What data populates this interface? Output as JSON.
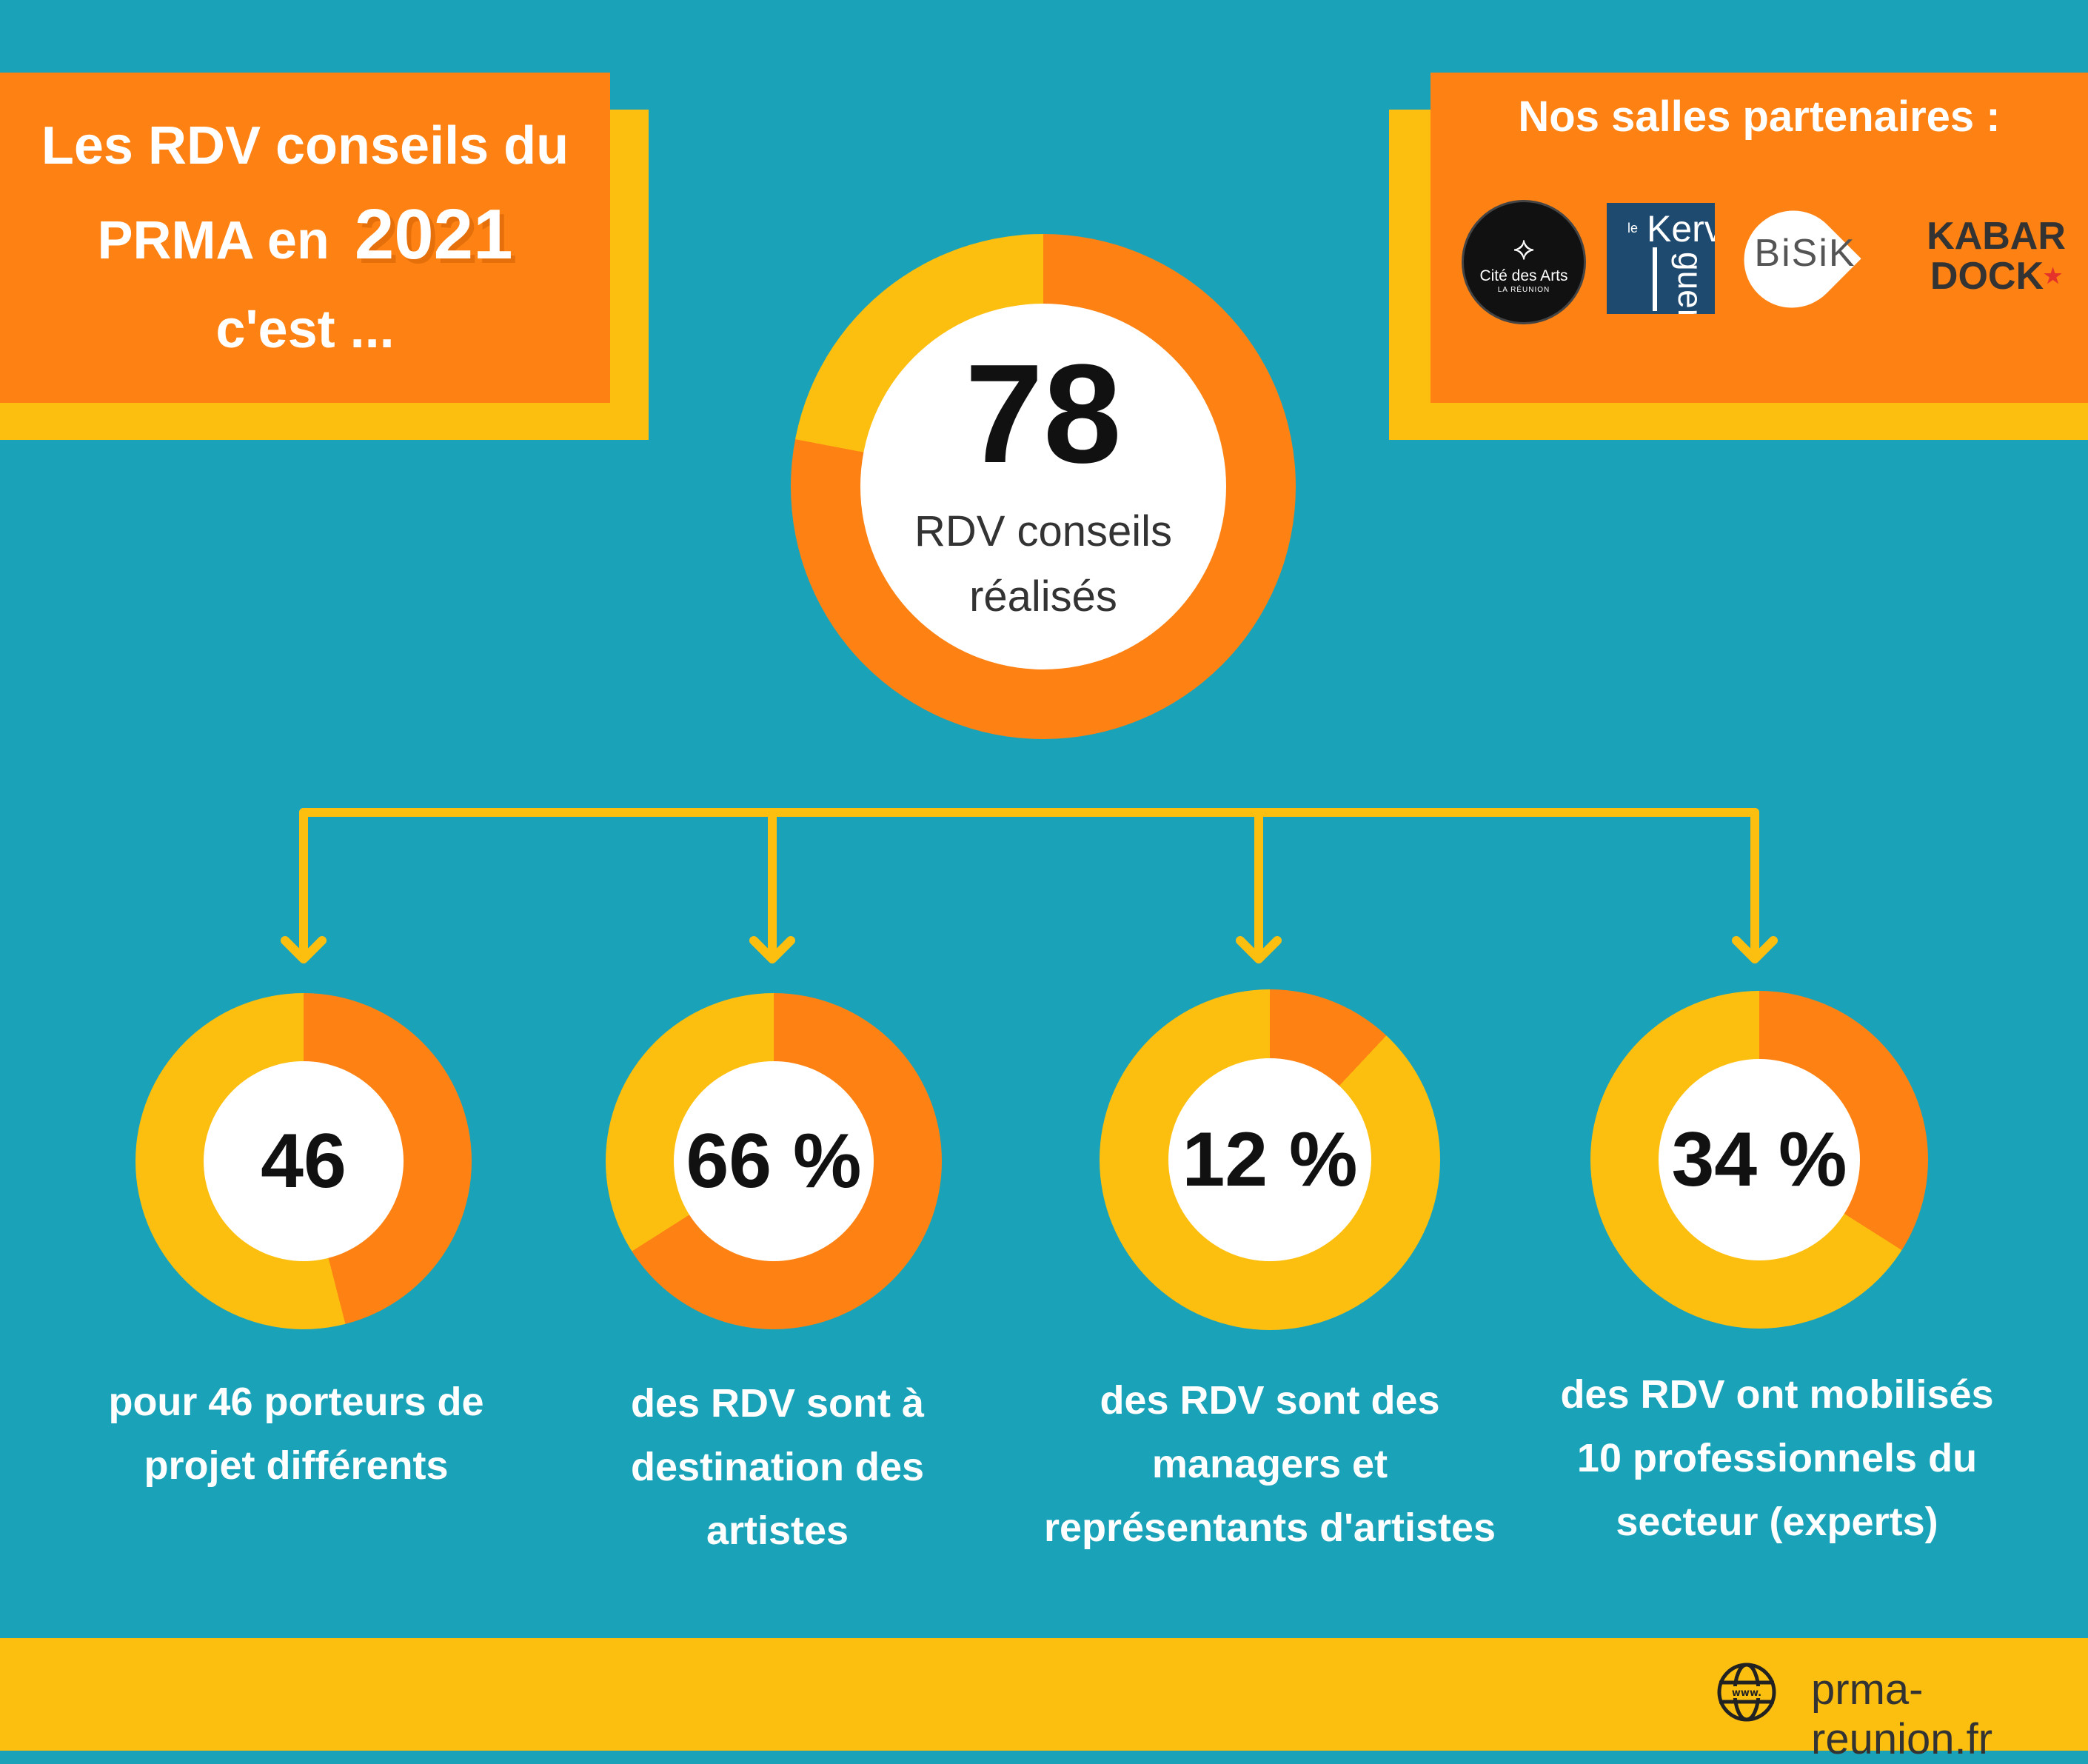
{
  "title": {
    "line1": "Les RDV conseils du",
    "line2_prefix": "PRMA en",
    "year": "2021",
    "line3": "c'est ..."
  },
  "partners": {
    "title": "Nos salles partenaires :",
    "logos": [
      {
        "name": "Cité des Arts",
        "sub": "LA RÉUNION"
      },
      {
        "name_top": "Kerv",
        "name_bottom": "guen",
        "prefix": "le"
      },
      {
        "name": "BiSiK"
      },
      {
        "name_top": "KABAR",
        "name_bottom": "DOCK"
      }
    ]
  },
  "chart_data": [
    {
      "type": "pie",
      "value_label": "78",
      "label": "RDV conseils réalisés",
      "label_line1": "RDV conseils",
      "label_line2": "réalisés",
      "fraction_orange": 0.78,
      "colors": {
        "orange": "#fd8213",
        "yellow": "#fdbf0f"
      }
    },
    {
      "type": "pie",
      "value_label": "46",
      "caption_lines": [
        "pour 46 porteurs de",
        "projet différents"
      ],
      "fraction_orange": 0.46,
      "colors": {
        "orange": "#fd8213",
        "yellow": "#fdbf0f"
      }
    },
    {
      "type": "pie",
      "value_label": "66 %",
      "caption_lines": [
        "des RDV sont à",
        "destination des",
        "artistes"
      ],
      "fraction_orange": 0.66,
      "colors": {
        "orange": "#fd8213",
        "yellow": "#fdbf0f"
      }
    },
    {
      "type": "pie",
      "value_label": "12 %",
      "caption_lines": [
        "des RDV sont des",
        "managers et",
        "représentants d'artistes"
      ],
      "fraction_orange": 0.12,
      "colors": {
        "orange": "#fd8213",
        "yellow": "#fdbf0f"
      }
    },
    {
      "type": "pie",
      "value_label": "34 %",
      "caption_lines": [
        "des RDV ont  mobilisés",
        "10 professionnels du",
        "secteur (experts)"
      ],
      "fraction_orange": 0.34,
      "colors": {
        "orange": "#fd8213",
        "yellow": "#fdbf0f"
      }
    }
  ],
  "footer": {
    "icon": "globe-icon",
    "website": "prma-reunion.fr"
  },
  "colors": {
    "background": "#1aa2b8",
    "orange": "#fd8213",
    "yellow": "#fdbf0f",
    "connector": "#fdbf0f"
  }
}
